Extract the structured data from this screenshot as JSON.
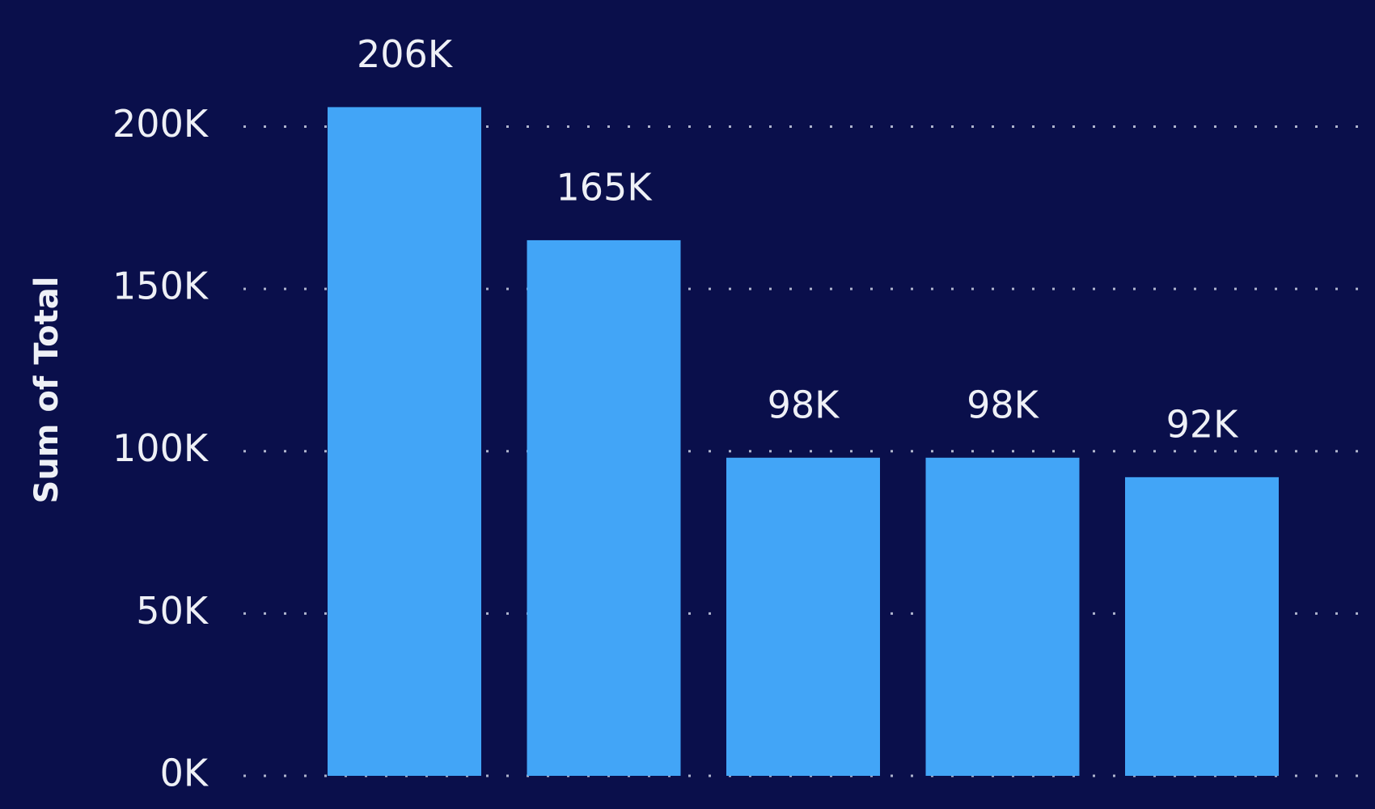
{
  "chart_data": {
    "type": "bar",
    "y_label": "Sum of Total",
    "categories": [
      null,
      null,
      null,
      null,
      null
    ],
    "values": [
      206000,
      165000,
      98000,
      98000,
      92000
    ],
    "value_labels": [
      "206K",
      "165K",
      "98K",
      "98K",
      "92K"
    ],
    "color": "#42a5f7",
    "ylim": [
      0,
      239000
    ],
    "yticks": [
      {
        "value": 0,
        "label": "0K"
      },
      {
        "value": 50000,
        "label": "50K"
      },
      {
        "value": 100000,
        "label": "100K"
      },
      {
        "value": 150000,
        "label": "150K"
      },
      {
        "value": 200000,
        "label": "200K"
      }
    ],
    "grid": true
  }
}
